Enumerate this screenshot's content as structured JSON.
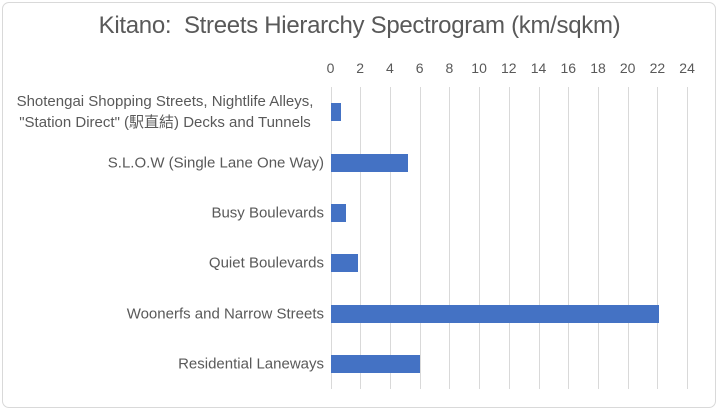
{
  "chart_data": {
    "type": "bar",
    "orientation": "horizontal",
    "title": "Kitano:  Streets Hierarchy Spectrogram (km/sqkm)",
    "categories": [
      "Shotengai Shopping Streets, Nightlife Alleys,\n\"Station Direct\" (駅直結) Decks and Tunnels",
      "S.L.O.W (Single Lane One Way)",
      "Busy Boulevards",
      "Quiet Boulevards",
      "Woonerfs and Narrow Streets",
      "Residential Laneways"
    ],
    "values": [
      0.7,
      5.2,
      1.0,
      1.8,
      22.1,
      6.0
    ],
    "xlabel": "",
    "ylabel": "",
    "xlim": [
      0,
      24
    ],
    "ticks": [
      0,
      2,
      4,
      6,
      8,
      10,
      12,
      14,
      16,
      18,
      20,
      22,
      24
    ],
    "axis_position": "top",
    "grid": true,
    "legend": false,
    "colors": {
      "bar": "#4472C4",
      "gridline": "#D9D9D9",
      "text": "#595959",
      "border": "#D9D9D9",
      "background": "#FFFFFF"
    }
  }
}
